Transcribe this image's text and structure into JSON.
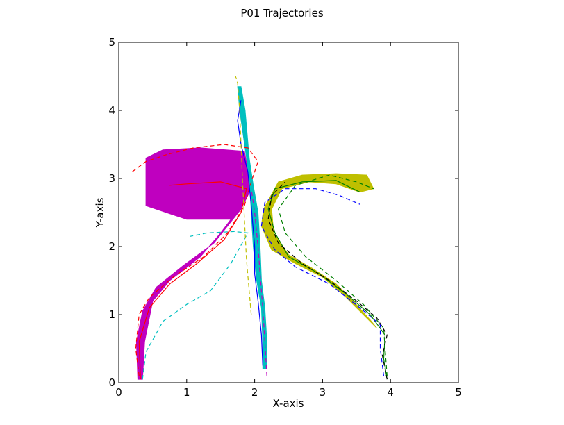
{
  "chart_data": {
    "type": "line",
    "title": "P01 Trajectories",
    "xlabel": "X-axis",
    "ylabel": "Y-axis",
    "xlim": [
      0,
      5
    ],
    "ylim": [
      0,
      5
    ],
    "xticks": [
      "0",
      "1",
      "2",
      "3",
      "4",
      "5"
    ],
    "yticks": [
      "0",
      "1",
      "2",
      "3",
      "4",
      "5"
    ],
    "grid": false,
    "bands": [
      {
        "color": "#bf00bf",
        "points": [
          [
            0.28,
            0.05
          ],
          [
            0.26,
            0.6
          ],
          [
            0.35,
            1.05
          ],
          [
            0.55,
            1.4
          ],
          [
            0.95,
            1.72
          ],
          [
            1.4,
            2.05
          ],
          [
            1.8,
            2.55
          ],
          [
            1.95,
            2.85
          ],
          [
            1.85,
            3.4
          ],
          [
            1.2,
            3.45
          ],
          [
            0.65,
            3.42
          ],
          [
            0.4,
            3.3
          ],
          [
            0.4,
            2.6
          ],
          [
            1.0,
            2.4
          ],
          [
            1.65,
            2.4
          ],
          [
            1.5,
            2.2
          ],
          [
            1.2,
            1.85
          ],
          [
            0.75,
            1.5
          ],
          [
            0.5,
            1.2
          ],
          [
            0.38,
            0.6
          ],
          [
            0.35,
            0.05
          ]
        ]
      },
      {
        "color": "#00bfbf",
        "points": [
          [
            1.75,
            4.35
          ],
          [
            1.78,
            4.0
          ],
          [
            1.88,
            3.3
          ],
          [
            1.93,
            2.9
          ],
          [
            1.95,
            2.5
          ],
          [
            1.98,
            2.0
          ],
          [
            2.03,
            1.5
          ],
          [
            2.1,
            1.1
          ],
          [
            2.12,
            0.6
          ],
          [
            2.12,
            0.2
          ],
          [
            2.18,
            0.2
          ],
          [
            2.18,
            0.6
          ],
          [
            2.15,
            1.1
          ],
          [
            2.1,
            1.5
          ],
          [
            2.08,
            2.0
          ],
          [
            2.05,
            2.5
          ],
          [
            1.98,
            2.9
          ],
          [
            1.92,
            3.3
          ],
          [
            1.86,
            4.0
          ],
          [
            1.8,
            4.35
          ]
        ]
      },
      {
        "color": "#bfbf00",
        "points": [
          [
            2.13,
            2.55
          ],
          [
            2.1,
            2.3
          ],
          [
            2.25,
            1.95
          ],
          [
            2.6,
            1.75
          ],
          [
            3.0,
            1.55
          ],
          [
            3.3,
            1.3
          ],
          [
            3.6,
            1.0
          ],
          [
            3.8,
            0.8
          ],
          [
            3.72,
            0.9
          ],
          [
            3.45,
            1.2
          ],
          [
            3.2,
            1.45
          ],
          [
            2.85,
            1.68
          ],
          [
            2.5,
            1.88
          ],
          [
            2.28,
            2.2
          ],
          [
            2.25,
            2.55
          ],
          [
            2.4,
            2.85
          ],
          [
            2.8,
            2.95
          ],
          [
            3.2,
            2.92
          ],
          [
            3.55,
            2.8
          ],
          [
            3.75,
            2.85
          ],
          [
            3.65,
            3.05
          ],
          [
            3.2,
            3.07
          ],
          [
            2.7,
            3.05
          ],
          [
            2.35,
            2.95
          ]
        ]
      }
    ],
    "series": [
      {
        "color": "#ff0000",
        "dashed": false,
        "points": [
          [
            0.32,
            0.05
          ],
          [
            0.3,
            0.6
          ],
          [
            0.45,
            1.1
          ],
          [
            0.75,
            1.45
          ],
          [
            1.15,
            1.75
          ],
          [
            1.55,
            2.1
          ],
          [
            1.8,
            2.5
          ],
          [
            1.88,
            2.85
          ],
          [
            1.5,
            2.95
          ],
          [
            1.0,
            2.92
          ],
          [
            0.75,
            2.9
          ]
        ]
      },
      {
        "color": "#ff0000",
        "dashed": true,
        "points": [
          [
            0.3,
            0.1
          ],
          [
            0.25,
            0.5
          ],
          [
            0.3,
            1.0
          ],
          [
            0.45,
            1.25
          ],
          [
            0.8,
            1.55
          ],
          [
            1.25,
            1.85
          ],
          [
            1.6,
            2.2
          ],
          [
            1.85,
            2.6
          ],
          [
            1.95,
            2.95
          ],
          [
            2.05,
            3.25
          ],
          [
            1.9,
            3.45
          ],
          [
            1.55,
            3.5
          ],
          [
            1.1,
            3.45
          ],
          [
            0.7,
            3.35
          ],
          [
            0.4,
            3.25
          ],
          [
            0.2,
            3.1
          ]
        ]
      },
      {
        "color": "#00bfbf",
        "dashed": true,
        "points": [
          [
            0.35,
            0.05
          ],
          [
            0.4,
            0.45
          ],
          [
            0.65,
            0.9
          ],
          [
            1.0,
            1.15
          ],
          [
            1.35,
            1.35
          ],
          [
            1.65,
            1.75
          ],
          [
            1.9,
            2.2
          ],
          [
            1.7,
            2.22
          ],
          [
            1.3,
            2.2
          ],
          [
            1.05,
            2.15
          ]
        ]
      },
      {
        "color": "#0000ff",
        "dashed": false,
        "points": [
          [
            2.12,
            0.25
          ],
          [
            2.1,
            0.7
          ],
          [
            2.05,
            1.2
          ],
          [
            2.0,
            1.6
          ],
          [
            2.0,
            2.0
          ],
          [
            1.95,
            2.6
          ],
          [
            1.9,
            3.1
          ],
          [
            1.8,
            3.5
          ],
          [
            1.75,
            3.85
          ],
          [
            1.8,
            4.15
          ]
        ]
      },
      {
        "color": "#bf00bf",
        "dashed": true,
        "points": [
          [
            2.18,
            0.1
          ],
          [
            2.15,
            0.6
          ],
          [
            2.12,
            1.1
          ],
          [
            2.08,
            1.6
          ],
          [
            2.05,
            2.0
          ],
          [
            2.0,
            2.5
          ],
          [
            1.95,
            2.85
          ]
        ]
      },
      {
        "color": "#bfbf00",
        "dashed": true,
        "points": [
          [
            1.95,
            1.0
          ],
          [
            1.88,
            1.8
          ],
          [
            1.85,
            2.4
          ],
          [
            1.82,
            3.0
          ],
          [
            1.8,
            3.5
          ],
          [
            1.78,
            4.0
          ],
          [
            1.75,
            4.4
          ],
          [
            1.72,
            4.5
          ]
        ]
      },
      {
        "color": "#008000",
        "dashed": false,
        "points": [
          [
            3.95,
            0.05
          ],
          [
            3.9,
            0.35
          ],
          [
            3.92,
            0.7
          ],
          [
            3.7,
            1.0
          ],
          [
            3.35,
            1.3
          ],
          [
            2.95,
            1.6
          ],
          [
            2.5,
            1.85
          ],
          [
            2.3,
            2.2
          ],
          [
            2.2,
            2.55
          ],
          [
            2.3,
            2.85
          ],
          [
            2.7,
            2.95
          ],
          [
            3.2,
            2.97
          ],
          [
            3.55,
            2.8
          ]
        ]
      },
      {
        "color": "#008000",
        "dashed": true,
        "points": [
          [
            3.95,
            0.1
          ],
          [
            3.92,
            0.5
          ],
          [
            3.9,
            0.8
          ],
          [
            3.6,
            1.15
          ],
          [
            3.2,
            1.5
          ],
          [
            2.75,
            1.85
          ],
          [
            2.45,
            2.2
          ],
          [
            2.35,
            2.55
          ],
          [
            2.6,
            2.9
          ],
          [
            3.1,
            3.05
          ],
          [
            3.5,
            2.95
          ],
          [
            3.75,
            2.85
          ]
        ]
      },
      {
        "color": "#0000ff",
        "dashed": true,
        "points": [
          [
            3.9,
            0.1
          ],
          [
            3.85,
            0.5
          ],
          [
            3.85,
            0.85
          ],
          [
            3.55,
            1.1
          ],
          [
            3.1,
            1.45
          ],
          [
            2.6,
            1.7
          ],
          [
            2.3,
            1.95
          ],
          [
            2.1,
            2.3
          ],
          [
            2.15,
            2.65
          ],
          [
            2.45,
            2.85
          ],
          [
            2.9,
            2.85
          ],
          [
            3.25,
            2.75
          ],
          [
            3.55,
            2.62
          ]
        ]
      },
      {
        "color": "#000000",
        "dashed": true,
        "points": [
          [
            3.95,
            0.05
          ],
          [
            3.88,
            0.4
          ],
          [
            3.95,
            0.7
          ],
          [
            3.8,
            0.95
          ],
          [
            3.5,
            1.2
          ],
          [
            3.1,
            1.5
          ],
          [
            2.7,
            1.75
          ],
          [
            2.35,
            2.05
          ],
          [
            2.2,
            2.4
          ],
          [
            2.25,
            2.75
          ],
          [
            2.45,
            2.95
          ]
        ]
      }
    ]
  }
}
